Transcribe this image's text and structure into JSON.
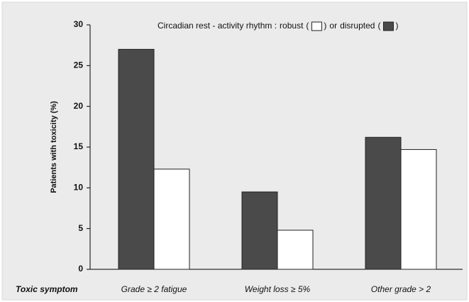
{
  "chart_data": {
    "type": "bar",
    "legend": {
      "title": "Circadian rest - activity rhythm :",
      "open": "(",
      "close": ")",
      "joiner": "or"
    },
    "y_label": "Patients with toxicity (%)",
    "x_label": "Toxic symptom",
    "categories": [
      "Grade ≥ 2 fatigue",
      "Weight loss ≥ 5%",
      "Other grade > 2"
    ],
    "series": [
      {
        "name": "disrupted",
        "color": "#4a4a4a",
        "values": [
          27,
          9.5,
          16.2
        ]
      },
      {
        "name": "robust",
        "color": "#ffffff",
        "values": [
          12.3,
          4.8,
          14.7
        ]
      }
    ],
    "ylim": [
      0,
      30
    ],
    "yticks": [
      0,
      5,
      10,
      15,
      20,
      25,
      30
    ],
    "grid": false
  }
}
